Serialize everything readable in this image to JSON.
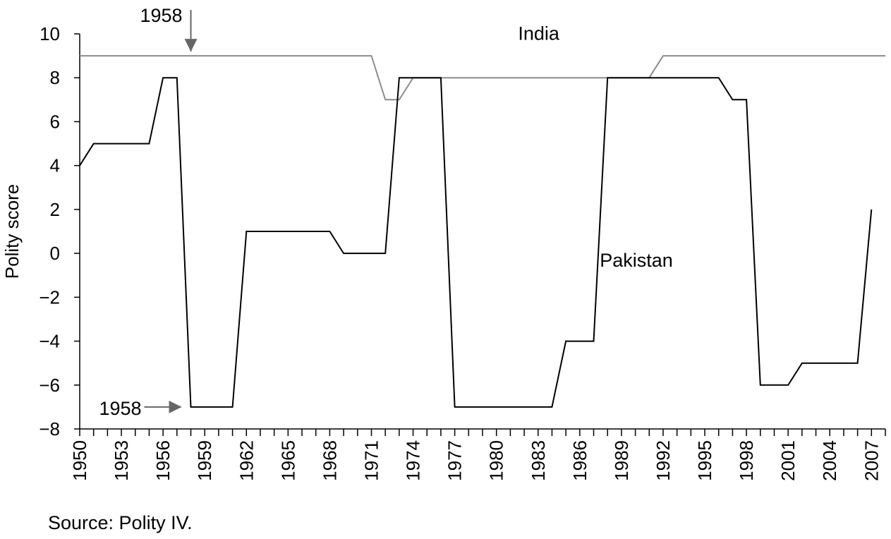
{
  "source_note": "Source: Polity IV.",
  "chart_data": {
    "type": "line",
    "title": "",
    "xlabel": "",
    "ylabel": "Polity score",
    "xlim": [
      1950,
      2008
    ],
    "ylim": [
      -8,
      10
    ],
    "x_ticks": [
      1950,
      1951,
      1952,
      1953,
      1954,
      1955,
      1956,
      1957,
      1958,
      1959,
      1960,
      1961,
      1962,
      1963,
      1964,
      1965,
      1966,
      1967,
      1968,
      1969,
      1970,
      1971,
      1972,
      1973,
      1974,
      1975,
      1976,
      1977,
      1978,
      1979,
      1980,
      1981,
      1982,
      1983,
      1984,
      1985,
      1986,
      1987,
      1988,
      1989,
      1990,
      1991,
      1992,
      1993,
      1994,
      1995,
      1996,
      1997,
      1998,
      1999,
      2000,
      2001,
      2002,
      2003,
      2004,
      2005,
      2006,
      2007,
      2008
    ],
    "x_tick_labels": [
      "1950",
      "1953",
      "1956",
      "1959",
      "1962",
      "1965",
      "1968",
      "1971",
      "1974",
      "1977",
      "1980",
      "1983",
      "1986",
      "1989",
      "1992",
      "1995",
      "1998",
      "2001",
      "2004",
      "2007"
    ],
    "y_ticks": [
      -8,
      -6,
      -4,
      -2,
      0,
      2,
      4,
      6,
      8,
      10
    ],
    "y_tick_labels": [
      "−8",
      "−6",
      "−4",
      "−2",
      "0",
      "2",
      "4",
      "6",
      "8",
      "10"
    ],
    "grid": false,
    "series": [
      {
        "name": "India",
        "color": "#8c8c8c",
        "points": [
          [
            1950,
            9
          ],
          [
            1971,
            9
          ],
          [
            1972,
            7
          ],
          [
            1973,
            7
          ],
          [
            1974,
            8
          ],
          [
            1991,
            8
          ],
          [
            1992,
            9
          ],
          [
            2008,
            9
          ]
        ]
      },
      {
        "name": "Pakistan",
        "color": "#000000",
        "points": [
          [
            1950,
            4
          ],
          [
            1951,
            5
          ],
          [
            1955,
            5
          ],
          [
            1956,
            8
          ],
          [
            1957,
            8
          ],
          [
            1958,
            -7
          ],
          [
            1961,
            -7
          ],
          [
            1962,
            1
          ],
          [
            1968,
            1
          ],
          [
            1969,
            0
          ],
          [
            1972,
            0
          ],
          [
            1973,
            8
          ],
          [
            1976,
            8
          ],
          [
            1977,
            -7
          ],
          [
            1984,
            -7
          ],
          [
            1985,
            -4
          ],
          [
            1987,
            -4
          ],
          [
            1988,
            8
          ],
          [
            1996,
            8
          ],
          [
            1997,
            7
          ],
          [
            1998,
            7
          ],
          [
            1999,
            -6
          ],
          [
            2001,
            -6
          ],
          [
            2002,
            -5
          ],
          [
            2006,
            -5
          ],
          [
            2007,
            2
          ]
        ]
      }
    ],
    "annotations": [
      {
        "text": "1958",
        "kind": "arrow-down",
        "x": 1958,
        "y": 9
      },
      {
        "text": "1958",
        "kind": "arrow-right",
        "x": 1958,
        "y": -7
      }
    ]
  }
}
